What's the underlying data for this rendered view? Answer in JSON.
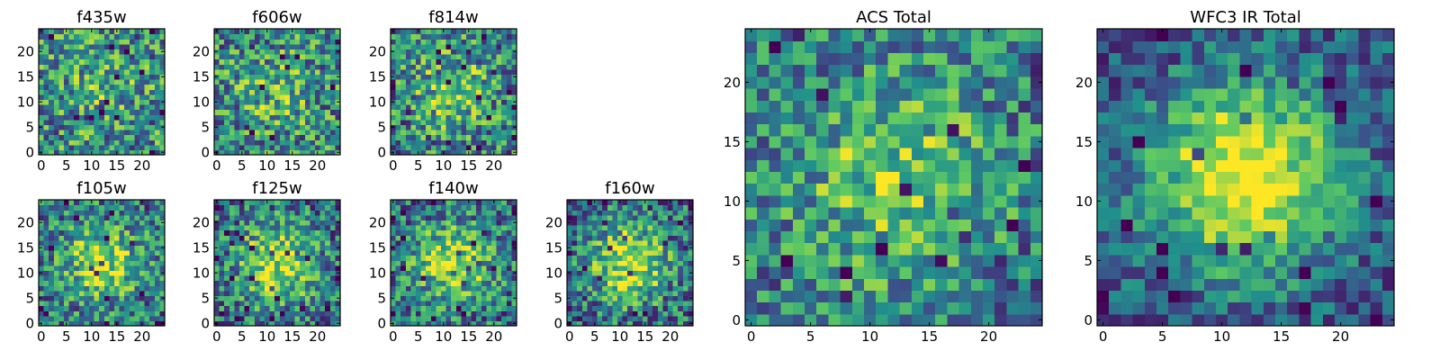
{
  "colors": {
    "viridis": [
      "#440154",
      "#3b528b",
      "#21918c",
      "#5ec962",
      "#fde725"
    ],
    "frame": "#000000",
    "background": "#ffffff"
  },
  "chart_data": [
    {
      "type": "heatmap",
      "title": "f435w",
      "xticks": [
        "0",
        "5",
        "10",
        "15",
        "20"
      ],
      "yticks": [
        "0",
        "5",
        "10",
        "15",
        "20"
      ],
      "x_range": [
        -0.5,
        24.5
      ],
      "y_range": [
        -0.5,
        24.5
      ],
      "grid_size": 25,
      "peak": 0.15,
      "noise": 1.0,
      "seed": 11
    },
    {
      "type": "heatmap",
      "title": "f606w",
      "xticks": [
        "0",
        "5",
        "10",
        "15",
        "20"
      ],
      "yticks": [
        "0",
        "5",
        "10",
        "15",
        "20"
      ],
      "x_range": [
        -0.5,
        24.5
      ],
      "y_range": [
        -0.5,
        24.5
      ],
      "grid_size": 25,
      "peak": 0.2,
      "noise": 1.0,
      "seed": 23
    },
    {
      "type": "heatmap",
      "title": "f814w",
      "xticks": [
        "0",
        "5",
        "10",
        "15",
        "20"
      ],
      "yticks": [
        "0",
        "5",
        "10",
        "15",
        "20"
      ],
      "x_range": [
        -0.5,
        24.5
      ],
      "y_range": [
        -0.5,
        24.5
      ],
      "grid_size": 25,
      "peak": 0.3,
      "noise": 1.0,
      "seed": 37
    },
    {
      "type": "heatmap",
      "title": "f105w",
      "xticks": [
        "0",
        "5",
        "10",
        "15",
        "20"
      ],
      "yticks": [
        "0",
        "5",
        "10",
        "15",
        "20"
      ],
      "x_range": [
        -0.5,
        24.5
      ],
      "y_range": [
        -0.5,
        24.5
      ],
      "grid_size": 25,
      "peak": 0.45,
      "noise": 0.9,
      "seed": 41
    },
    {
      "type": "heatmap",
      "title": "f125w",
      "xticks": [
        "0",
        "5",
        "10",
        "15",
        "20"
      ],
      "yticks": [
        "0",
        "5",
        "10",
        "15",
        "20"
      ],
      "x_range": [
        -0.5,
        24.5
      ],
      "y_range": [
        -0.5,
        24.5
      ],
      "grid_size": 25,
      "peak": 0.5,
      "noise": 0.9,
      "seed": 53
    },
    {
      "type": "heatmap",
      "title": "f140w",
      "xticks": [
        "0",
        "5",
        "10",
        "15",
        "20"
      ],
      "yticks": [
        "0",
        "5",
        "10",
        "15",
        "20"
      ],
      "x_range": [
        -0.5,
        24.5
      ],
      "y_range": [
        -0.5,
        24.5
      ],
      "grid_size": 25,
      "peak": 0.5,
      "noise": 0.9,
      "seed": 67
    },
    {
      "type": "heatmap",
      "title": "f160w",
      "xticks": [
        "0",
        "5",
        "10",
        "15",
        "20"
      ],
      "yticks": [
        "0",
        "5",
        "10",
        "15",
        "20"
      ],
      "x_range": [
        -0.5,
        24.5
      ],
      "y_range": [
        -0.5,
        24.5
      ],
      "grid_size": 25,
      "peak": 0.55,
      "noise": 0.9,
      "seed": 79
    },
    {
      "type": "heatmap",
      "title": "ACS Total",
      "xticks": [
        "0",
        "5",
        "10",
        "15",
        "20"
      ],
      "yticks": [
        "0",
        "5",
        "10",
        "15",
        "20"
      ],
      "x_range": [
        -0.5,
        24.5
      ],
      "y_range": [
        -0.5,
        24.5
      ],
      "grid_size": 25,
      "peak": 0.35,
      "noise": 0.85,
      "seed": 97
    },
    {
      "type": "heatmap",
      "title": "WFC3 IR Total",
      "xticks": [
        "0",
        "5",
        "10",
        "15",
        "20"
      ],
      "yticks": [
        "0",
        "5",
        "10",
        "15",
        "20"
      ],
      "x_range": [
        -0.5,
        24.5
      ],
      "y_range": [
        -0.5,
        24.5
      ],
      "grid_size": 25,
      "peak": 0.8,
      "noise": 0.6,
      "seed": 131
    }
  ]
}
